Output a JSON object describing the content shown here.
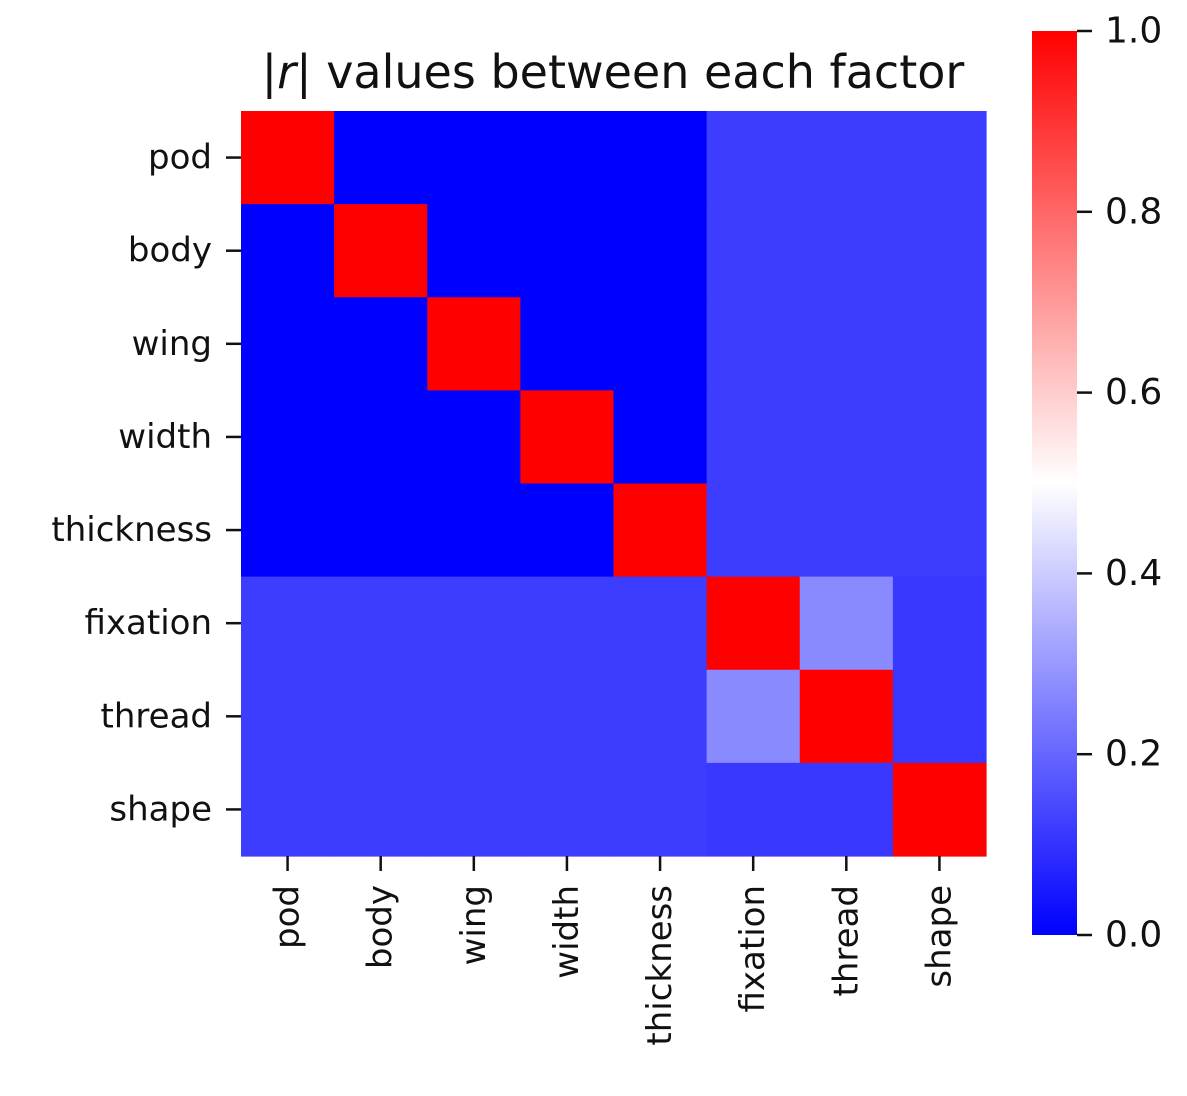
{
  "chart_data": {
    "type": "heatmap",
    "title": "|r| values between each factor",
    "title_parts": {
      "open_bar": "|",
      "r": "r",
      "rest": "| values between each factor"
    },
    "categories": [
      "pod",
      "body",
      "wing",
      "width",
      "thickness",
      "fixation",
      "thread",
      "shape"
    ],
    "matrix": [
      [
        1.0,
        0.0,
        0.0,
        0.0,
        0.0,
        0.12,
        0.12,
        0.12
      ],
      [
        0.0,
        1.0,
        0.0,
        0.0,
        0.0,
        0.12,
        0.12,
        0.12
      ],
      [
        0.0,
        0.0,
        1.0,
        0.0,
        0.0,
        0.12,
        0.12,
        0.12
      ],
      [
        0.0,
        0.0,
        0.0,
        1.0,
        0.0,
        0.12,
        0.12,
        0.12
      ],
      [
        0.0,
        0.0,
        0.0,
        0.0,
        1.0,
        0.12,
        0.12,
        0.12
      ],
      [
        0.12,
        0.12,
        0.12,
        0.12,
        0.12,
        1.0,
        0.27,
        0.11
      ],
      [
        0.12,
        0.12,
        0.12,
        0.12,
        0.12,
        0.27,
        1.0,
        0.11
      ],
      [
        0.12,
        0.12,
        0.12,
        0.12,
        0.12,
        0.11,
        0.11,
        1.0
      ]
    ],
    "colormap": {
      "name": "bwr",
      "low": "#0000ff",
      "mid": "#ffffff",
      "high": "#ff0000"
    },
    "vmin": 0.0,
    "vmax": 1.0,
    "colorbar": {
      "ticks": [
        0.0,
        0.2,
        0.4,
        0.6,
        0.8,
        1.0
      ],
      "tick_labels": [
        "0.0",
        "0.2",
        "0.4",
        "0.6",
        "0.8",
        "1.0"
      ],
      "placement": "right"
    }
  }
}
